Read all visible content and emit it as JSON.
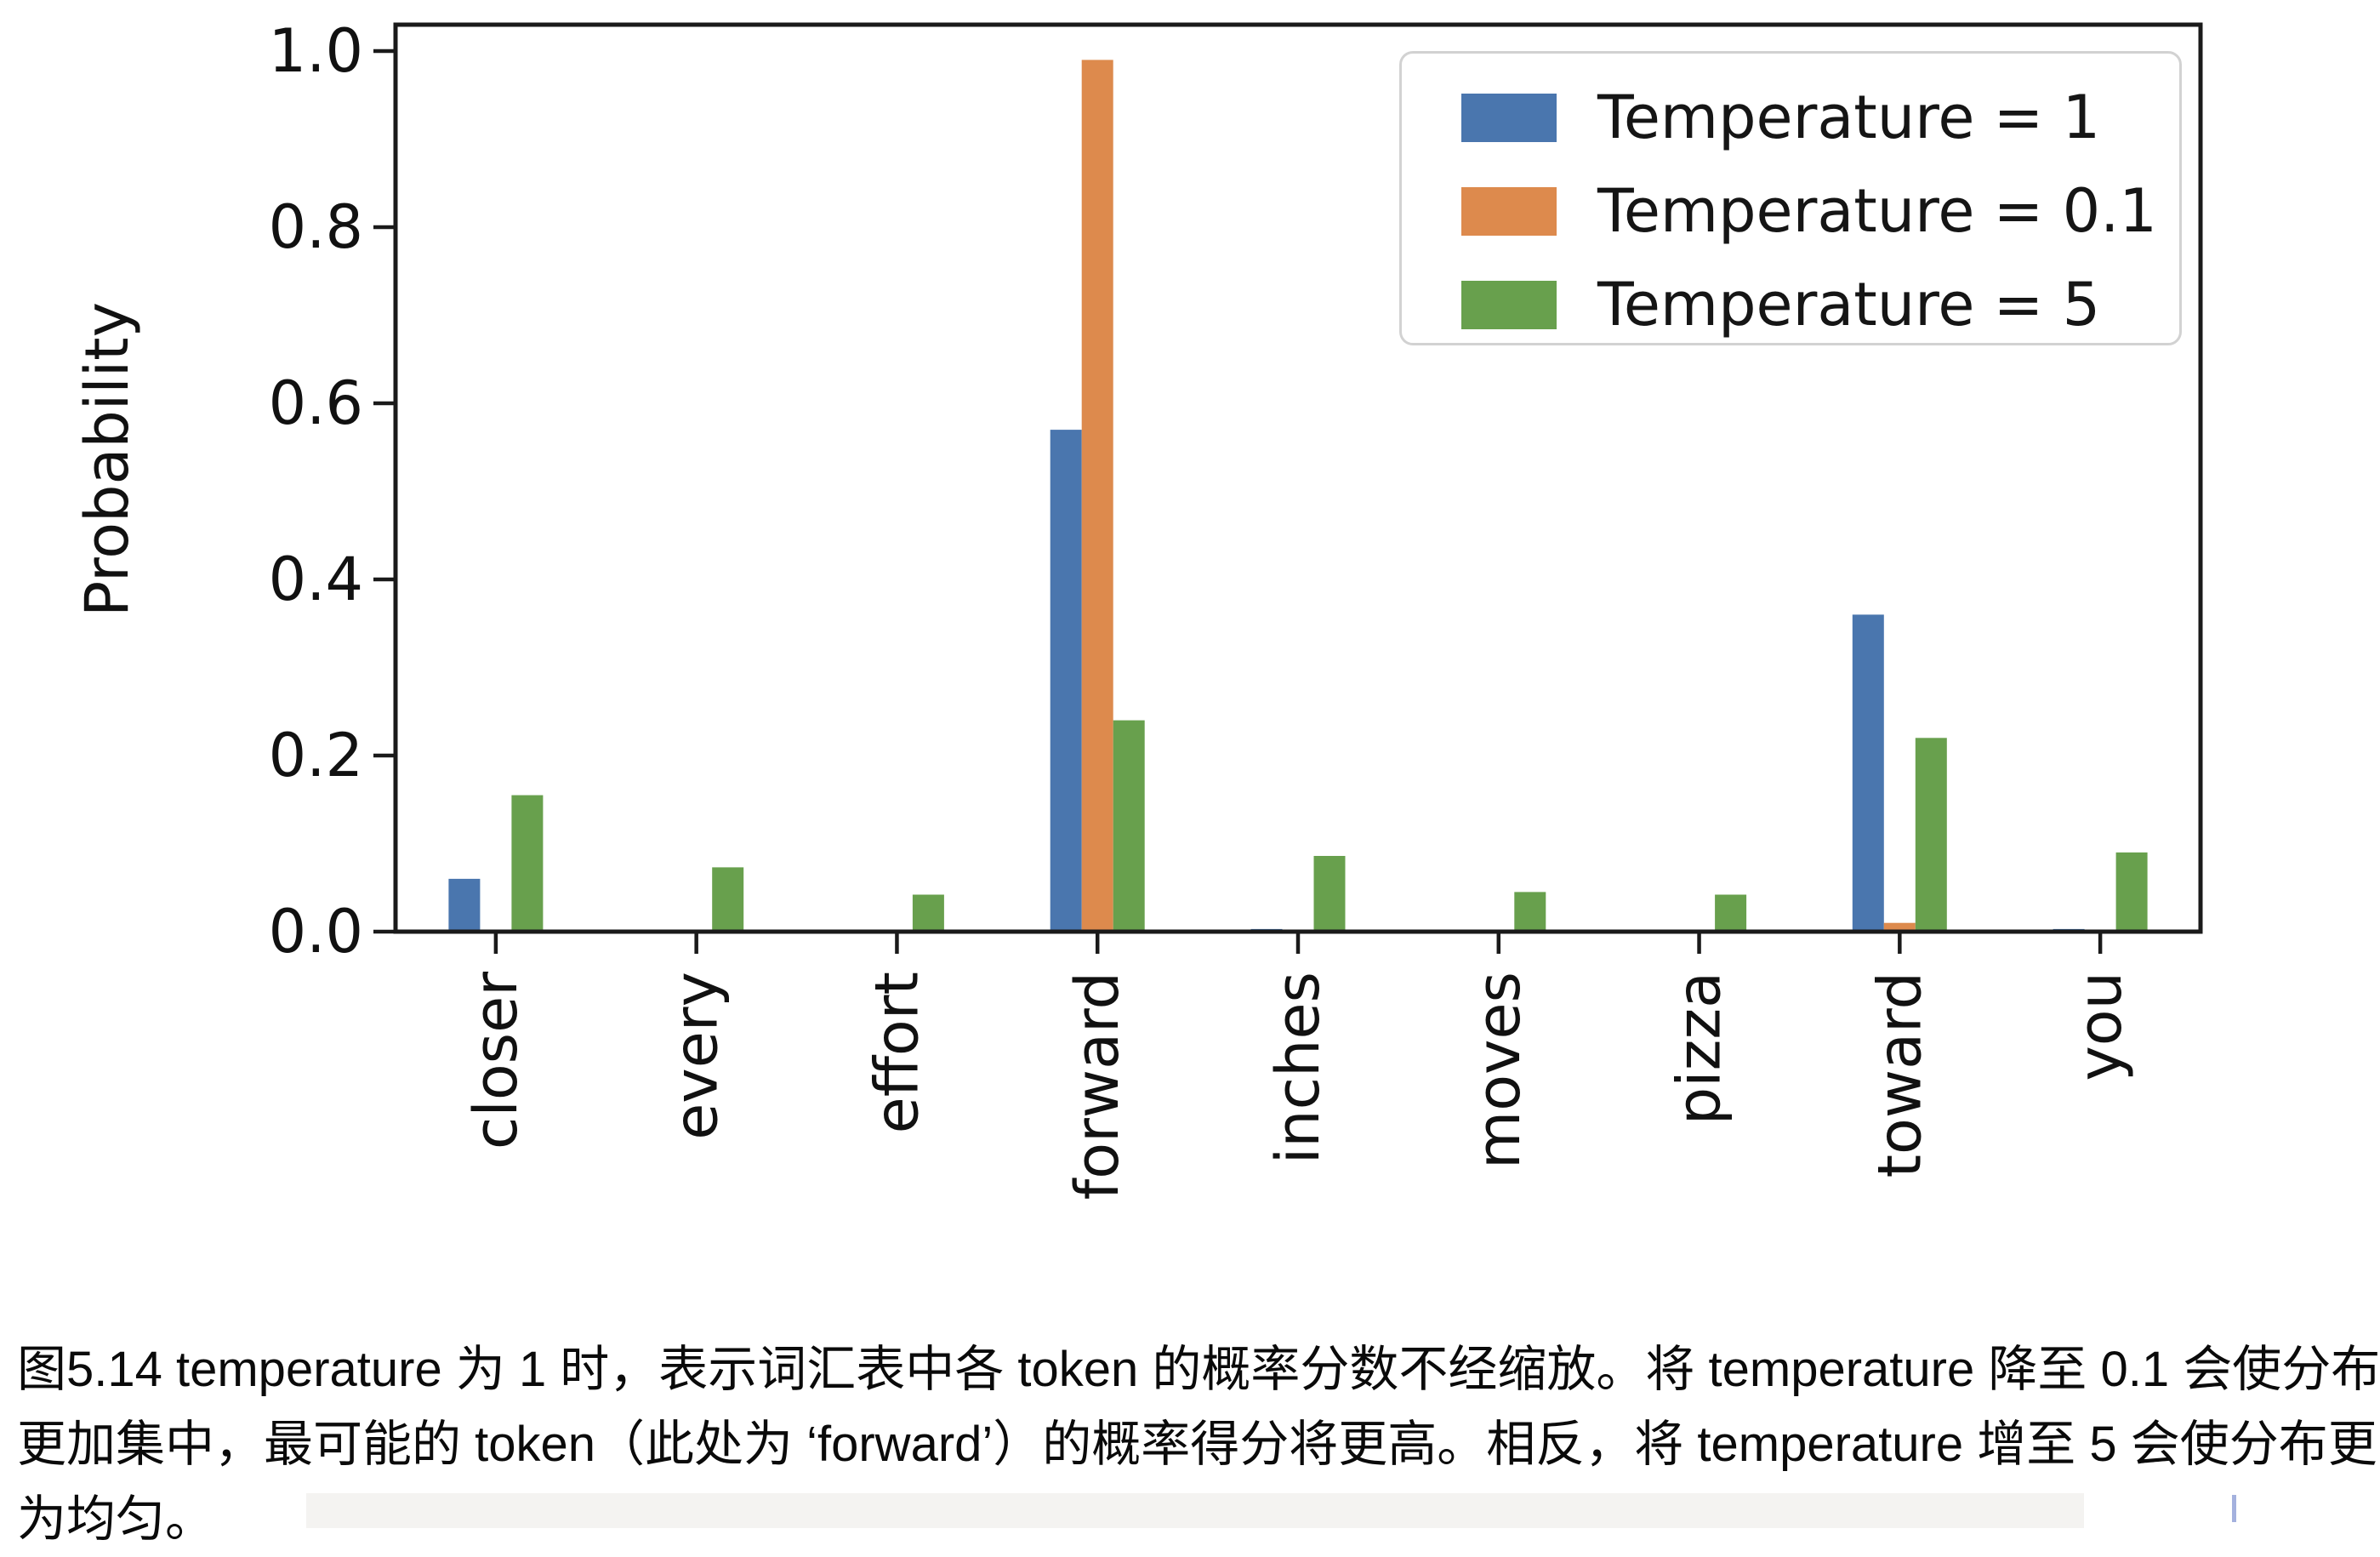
{
  "figure": {
    "ylabel": "Probability"
  },
  "chart_data": {
    "type": "bar",
    "title": "",
    "xlabel": "",
    "ylabel": "Probability",
    "categories": [
      "closer",
      "every",
      "effort",
      "forward",
      "inches",
      "moves",
      "pizza",
      "toward",
      "you"
    ],
    "series": [
      {
        "name": "Temperature = 1",
        "color": "#4a76ae",
        "values": [
          0.06,
          0,
          0,
          0.57,
          0.003,
          0,
          0,
          0.36,
          0.003
        ]
      },
      {
        "name": "Temperature = 0.1",
        "color": "#dd8a4d",
        "values": [
          0,
          0,
          0,
          0.99,
          0,
          0,
          0,
          0.01,
          0
        ]
      },
      {
        "name": "Temperature = 5",
        "color": "#68a04d",
        "values": [
          0.155,
          0.073,
          0.042,
          0.24,
          0.086,
          0.045,
          0.042,
          0.22,
          0.09
        ]
      }
    ],
    "ylim": [
      0,
      1.03
    ],
    "yticks": [
      0,
      0.2,
      0.4,
      0.6,
      0.8,
      1.0
    ],
    "grid": false,
    "legend_position": "upper right",
    "x_tick_label_rotation": 90
  },
  "caption": {
    "lines": [
      "图5.14 temperature 为 1 时，表示词汇表中各 token 的概率分数不经缩放。将 temperature 降至 0.1 会使分布",
      "更加集中，最可能的 token（此处为 ‘forward’）的概率得分将更高。相反，将 temperature 增至 5 会使分布更",
      "为均匀。"
    ]
  }
}
